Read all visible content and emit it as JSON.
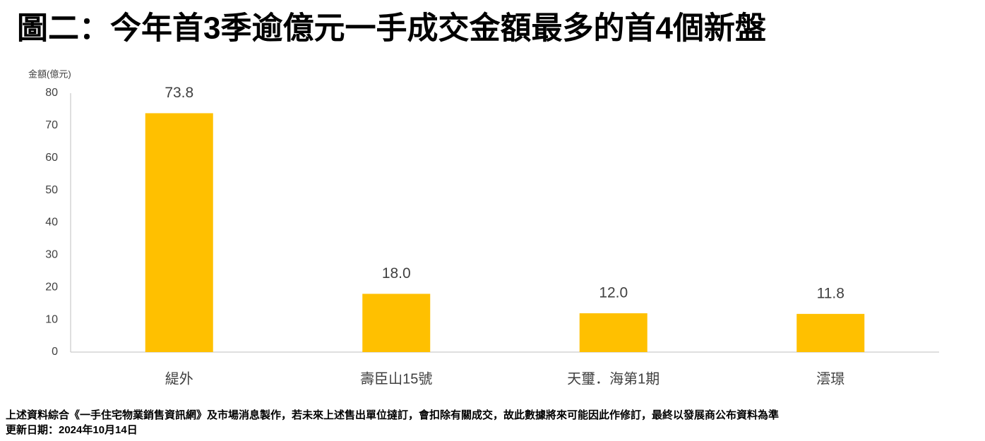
{
  "chart_data": {
    "type": "bar",
    "title": "圖二：今年首3季逾億元一手成交金額最多的首4個新盤",
    "y_label": "金額(億元)",
    "categories": [
      "緹外",
      "壽臣山15號",
      "天璽．海第1期",
      "澐璟"
    ],
    "values": [
      73.8,
      18.0,
      12.0,
      11.8
    ],
    "value_labels": [
      "73.8",
      "18.0",
      "12.0",
      "11.8"
    ],
    "color": "#ffc000",
    "ylim": [
      0,
      80
    ],
    "yticks": [
      0,
      10,
      20,
      30,
      40,
      50,
      60,
      70,
      80
    ],
    "grid": false
  },
  "footnotes": [
    "上述資料綜合《一手住宅物業銷售資訊網》及市場消息製作，若未來上述售出單位撻訂，會扣除有關成交，故此數據將來可能因此作修訂，最終以發展商公布資料為準",
    "更新日期：2024年10月14日"
  ]
}
